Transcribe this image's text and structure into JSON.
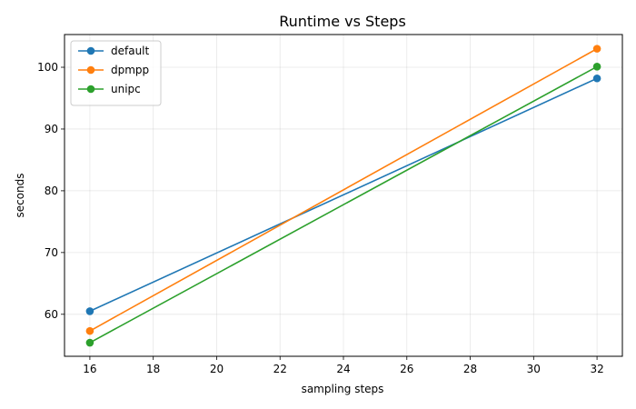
{
  "chart_data": {
    "type": "line",
    "title": "Runtime vs Steps",
    "xlabel": "sampling steps",
    "ylabel": "seconds",
    "x": [
      16,
      32
    ],
    "xlim": [
      15.2,
      32.8
    ],
    "ylim": [
      53.2,
      105.3
    ],
    "xticks": [
      16,
      18,
      20,
      22,
      24,
      26,
      28,
      30,
      32
    ],
    "yticks": [
      60,
      70,
      80,
      90,
      100
    ],
    "grid": true,
    "legend_position": "top-left",
    "series": [
      {
        "name": "default",
        "color": "#1f77b4",
        "values": [
          60.5,
          98.2
        ]
      },
      {
        "name": "dpmpp",
        "color": "#ff7f0e",
        "values": [
          57.3,
          103.0
        ]
      },
      {
        "name": "unipc",
        "color": "#2ca02c",
        "values": [
          55.4,
          100.1
        ]
      }
    ]
  }
}
